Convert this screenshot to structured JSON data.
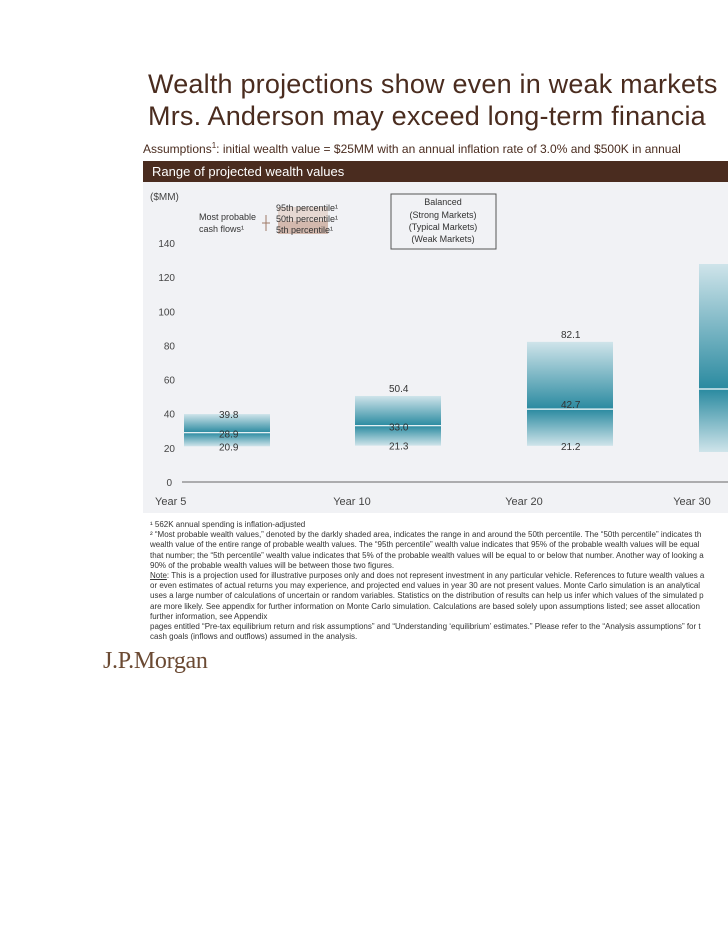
{
  "title_line1": "Wealth projections show even in weak markets",
  "title_line2": "Mrs. Anderson may exceed long-term financia",
  "assumptions": {
    "lead": "Assumptions",
    "sup": "1",
    "text": ": initial wealth value = $25MM with an annual inflation rate of 3.0% and $500K in annual"
  },
  "panel_title": "Range of projected wealth values",
  "legend": {
    "most_probable": [
      "Most probable",
      "cash flows¹"
    ],
    "percentiles": [
      "95th percentile¹",
      "50th percentile¹",
      "5th percentile¹"
    ],
    "scenario": [
      "Balanced",
      "(Strong Markets)",
      "(Typical Markets)",
      "(Weak Markets)"
    ]
  },
  "colors": {
    "bar_dark": "#2a8aa0",
    "bar_light": "#cfe4ea",
    "brown": "#4a2c1f",
    "panel_bg": "#f1f2f5"
  },
  "chart_data": {
    "type": "bar",
    "subtype": "floating-range",
    "title": "Range of projected wealth values",
    "ylabel": "($MM)",
    "ylim": [
      0,
      140
    ],
    "yticks": [
      0,
      20,
      40,
      60,
      80,
      100,
      120,
      140
    ],
    "categories": [
      "Year 5",
      "Year 10",
      "Year  20",
      "Year 30"
    ],
    "series": [
      {
        "name": "95th percentile¹",
        "values": [
          39.8,
          50.4,
          82.1,
          null
        ]
      },
      {
        "name": "50th percentile¹",
        "values": [
          28.9,
          33.0,
          42.7,
          null
        ]
      },
      {
        "name": "5th percentile¹",
        "values": [
          20.9,
          21.3,
          21.2,
          null
        ]
      }
    ],
    "grid": false,
    "legend_position": "top-left"
  },
  "footnotes": [
    "¹  562K annual spending is inflation-adjusted",
    "²  “Most probable wealth values,” denoted by the darkly shaded area, indicates the range in and around the 50th percentile. The “50th percentile” indicates th",
    "wealth value of the entire range of probable wealth values. The “95th percentile” wealth value indicates that 95% of the probable wealth values will be equal",
    "that number; the “5th percentile” wealth value indicates that 5% of the probable wealth values will be equal to or below that number. Another way of looking a",
    "90% of the probable wealth values will be between those two figures.",
    "Note: This is a projection used for illustrative purposes only and does not represent investment in any particular vehicle. References to future wealth values a",
    "or even estimates of actual returns you may experience, and projected end values in year 30 are not present values. Monte Carlo simulation is an analytical",
    "uses a large number of calculations of uncertain or random variables. Statistics on the distribution of results can help us infer which values of the simulated p",
    "are more likely. See appendix for further information on Monte Carlo simulation. Calculations are based solely upon assumptions listed; see asset allocation",
    "further information, see Appendix",
    "pages entitled “Pre-tax equilibrium return and risk assumptions” and “Understanding ‘equilibrium’ estimates.” Please refer to the “Analysis assumptions” for t",
    "cash goals (inflows and outflows) assumed in the analysis."
  ],
  "note_label": "Note",
  "logo": "J.P.Morgan"
}
